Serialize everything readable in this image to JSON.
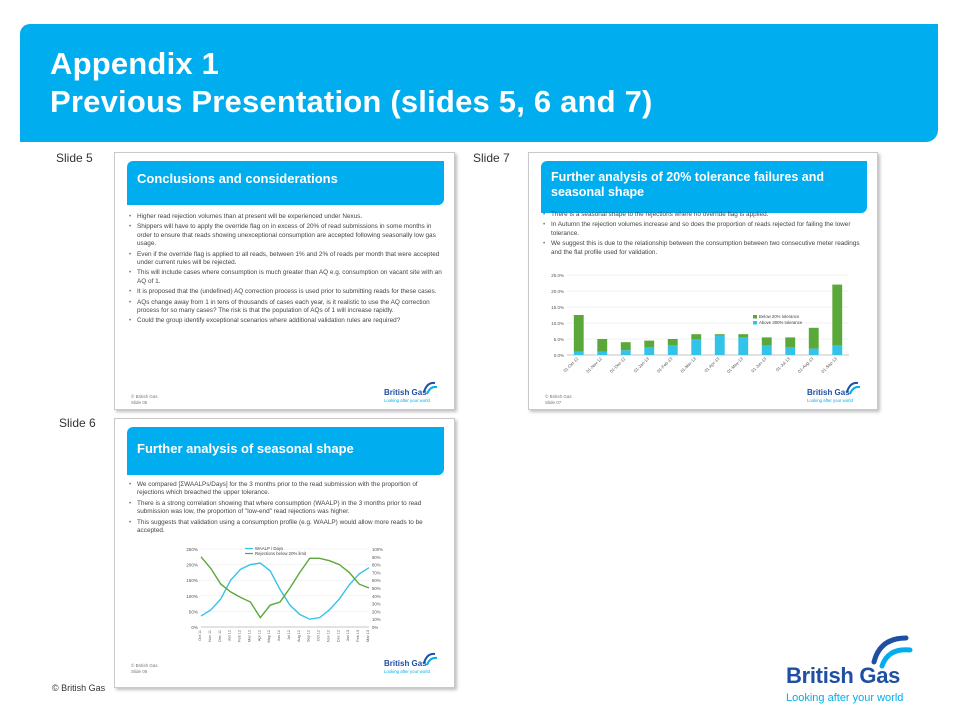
{
  "header": {
    "title_line1": "Appendix 1",
    "title_line2": "Previous Presentation (slides 5, 6 and 7)"
  },
  "labels": {
    "slide5": "Slide 5",
    "slide6": "Slide 6",
    "slide7": "Slide 7"
  },
  "slide5": {
    "title": "Conclusions and considerations",
    "bullets": [
      "Higher read rejection volumes than at present will be experienced under Nexus.",
      "Shippers will have to apply the override flag on in excess of 20% of read submissions in some months in order to ensure that reads showing unexceptional consumption are accepted following seasonally low gas usage.",
      "Even if the override flag is applied to all reads, between 1% and 2% of reads per month that were accepted under current rules will be rejected.",
      "This will include cases where consumption is much greater  than AQ e.g. consumption on vacant site with an AQ of 1.",
      "It is proposed that the (undefined) AQ correction process is used prior to submitting reads for these cases.",
      "AQs change away from 1 in tens of thousands of cases each year, is it realistic to use the AQ correction process for so many cases? The risk is that the population of AQs of 1 will increase rapidly.",
      "Could the group identify exceptional scenarios where additional validation rules are required?"
    ],
    "footer_line1": "© British Gas",
    "footer_line2": "Slide 05"
  },
  "slide6": {
    "title": "Further analysis of seasonal shape",
    "bullets": [
      "We compared [ΣWAALPs/Days] for the 3 months prior to the read submission with the proportion of rejections which breached the upper tolerance.",
      "There is a strong correlation showing that where consumption (WAALP) in the 3 months prior to read submission was low, the proportion of \"low-end\" read rejections was higher.",
      "This suggests that validation using a consumption profile (e.g. WAALP) would allow more reads to be accepted."
    ],
    "footer_line1": "© British Gas",
    "footer_line2": "Slide 06"
  },
  "slide7": {
    "title": "Further analysis of 20% tolerance failures and seasonal shape",
    "bullets": [
      "There is a seasonal shape to the rejections where no override flag is applied.",
      "In Autumn the rejection volumes increase and so does the proportion of reads rejected for failing the lower tolerance.",
      "We suggest this is due to the relationship between the consumption between two consecutive meter readings and the flat profile used for validation."
    ],
    "footer_line1": "© British Gas",
    "footer_line2": "Slide 07"
  },
  "thumb_logo": {
    "name": "British Gas",
    "tagline": "Looking after your world"
  },
  "copyright": "© British Gas",
  "brand": {
    "name": "British Gas",
    "tagline": "Looking after your world"
  },
  "colors": {
    "accent": "#00aeef",
    "brand_blue": "#1f4fa3",
    "series_green": "#5aa83a",
    "series_cyan": "#33c3e8"
  },
  "chart_data": [
    {
      "type": "bar",
      "stacked": true,
      "categories": [
        "01-Oct-12",
        "01-Nov-12",
        "01-Dec-12",
        "01-Jan-13",
        "01-Feb-13",
        "01-Mar-13",
        "01-Apr-13",
        "01-May-13",
        "01-Jun-13",
        "01-Jul-13",
        "01-Aug-13",
        "01-Sep-13"
      ],
      "series": [
        {
          "name": "Above 300% tolerance",
          "color": "#33c3e8",
          "values": [
            1.0,
            1.0,
            1.5,
            2.5,
            3.0,
            5.0,
            6.0,
            5.5,
            3.0,
            2.5,
            2.0,
            3.0
          ]
        },
        {
          "name": "Below 20% tolerance",
          "color": "#5aa83a",
          "values": [
            11.5,
            4.0,
            2.5,
            2.0,
            2.0,
            1.5,
            0.5,
            1.0,
            2.5,
            3.0,
            6.5,
            19.0
          ]
        }
      ],
      "yticks": [
        "0.0%",
        "5.0%",
        "10.0%",
        "15.0%",
        "20.0%",
        "25.0%"
      ],
      "ylim": [
        0,
        25
      ],
      "legend": "top-right"
    },
    {
      "type": "line",
      "categories": [
        "Oct 11",
        "Nov 11",
        "Dec 11",
        "Jan 12",
        "Feb 12",
        "Mar 12",
        "Apr 12",
        "May 12",
        "Jun 12",
        "Jul 12",
        "Aug 12",
        "Sep 12",
        "Oct 12",
        "Nov 12",
        "Dec 12",
        "Jan 13",
        "Feb 13",
        "Mar 13"
      ],
      "series": [
        {
          "name": "WAALP / Days",
          "axis": "left",
          "color": "#33c3e8",
          "values": [
            35,
            55,
            90,
            150,
            185,
            200,
            205,
            180,
            120,
            70,
            40,
            25,
            30,
            55,
            90,
            135,
            170,
            190
          ]
        },
        {
          "name": "Rejections below 20% limit",
          "axis": "right",
          "color": "#5aa83a",
          "values": [
            90,
            75,
            55,
            45,
            38,
            32,
            12,
            28,
            32,
            50,
            70,
            88,
            88,
            85,
            80,
            70,
            55,
            50
          ]
        }
      ],
      "yticks_left": [
        "0%",
        "50%",
        "100%",
        "150%",
        "200%",
        "250%"
      ],
      "yticks_right": [
        "0%",
        "10%",
        "20%",
        "30%",
        "40%",
        "50%",
        "60%",
        "70%",
        "80%",
        "90%",
        "100%"
      ],
      "ylim_left": [
        0,
        250
      ],
      "ylim_right": [
        0,
        100
      ],
      "legend": "top"
    }
  ]
}
